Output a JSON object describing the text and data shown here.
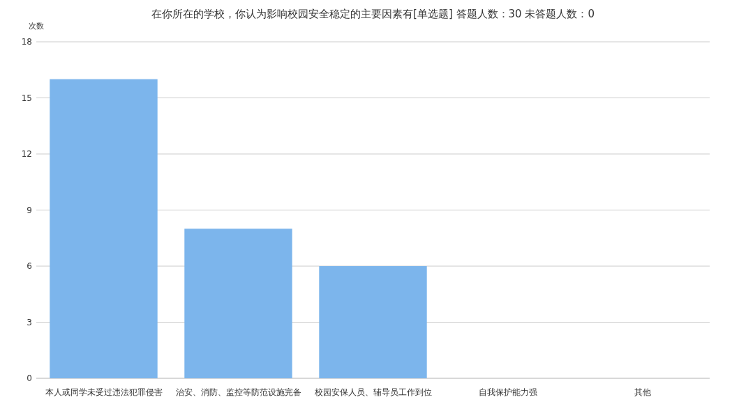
{
  "chart_data": {
    "type": "bar",
    "title": "在你所在的学校，你认为影响校园安全稳定的主要因素有[单选题]  答题人数：30  未答题人数：0",
    "ylabel": "次数",
    "categories": [
      "本人或同学未受过违法犯罪侵害",
      "治安、消防、监控等防范设施完备",
      "校园安保人员、辅导员工作到位",
      "自我保护能力强",
      "其他"
    ],
    "values": [
      16,
      8,
      6,
      0,
      0
    ],
    "color": "#7cb5ec",
    "ylim": [
      0,
      18
    ],
    "yticks": [
      0,
      3,
      6,
      9,
      12,
      15,
      18
    ],
    "grid": "y"
  }
}
